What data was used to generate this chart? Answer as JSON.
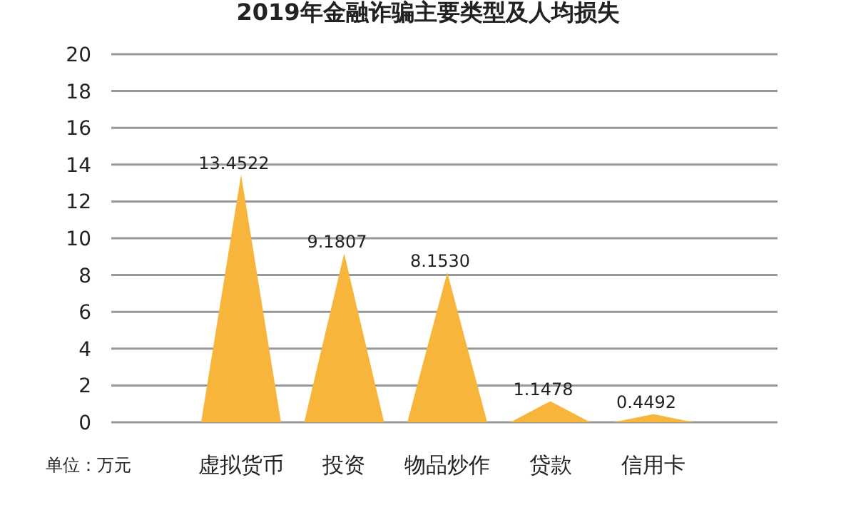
{
  "chart_data": {
    "type": "bar",
    "title": "2019年金融诈骗主要类型及人均损失",
    "categories": [
      "虚拟货币",
      "投资",
      "物品炒作",
      "贷款",
      "信用卡"
    ],
    "values": [
      13.4522,
      9.1807,
      8.153,
      1.1478,
      0.4492
    ],
    "color": "#f8b53c",
    "ylim": [
      0,
      20
    ],
    "yticks": [
      0,
      2,
      4,
      6,
      8,
      10,
      12,
      14,
      16,
      18,
      20
    ],
    "grid": "y",
    "value_labels": [
      "13.4522",
      "9.1807",
      "8.1530",
      "1.1478",
      "0.4492"
    ],
    "annotations": [
      "单位：万元"
    ]
  }
}
